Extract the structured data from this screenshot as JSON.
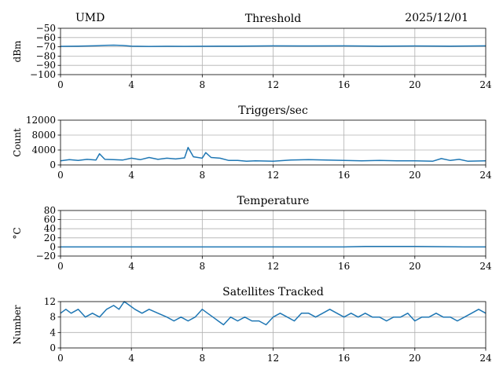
{
  "header": {
    "station": "UMD",
    "date": "2025/12/01"
  },
  "chart_data": [
    {
      "type": "line",
      "title": "Threshold",
      "ylabel": "dBm",
      "xlim": [
        0,
        24
      ],
      "ylim": [
        -100,
        -50
      ],
      "xticks": [
        "0",
        "4",
        "8",
        "12",
        "16",
        "20",
        "24"
      ],
      "yticks": [
        "−50",
        "−60",
        "−70",
        "−80",
        "−90",
        "−100"
      ],
      "grid": true,
      "series": [
        {
          "color": "#1f77b4",
          "x": [
            0,
            1,
            2,
            2.5,
            3,
            3.5,
            4,
            5,
            6,
            7,
            8,
            9,
            10,
            12,
            14,
            16,
            18,
            20,
            22,
            24
          ],
          "y": [
            -69.5,
            -69.3,
            -68.8,
            -68.5,
            -68.2,
            -68.6,
            -69.3,
            -69.6,
            -69.4,
            -69.5,
            -69.4,
            -69.3,
            -69.2,
            -69.0,
            -69.1,
            -69.0,
            -69.2,
            -69.1,
            -69.2,
            -69.0
          ]
        }
      ]
    },
    {
      "type": "line",
      "title": "Triggers/sec",
      "ylabel": "Count",
      "xlim": [
        0,
        24
      ],
      "ylim": [
        0,
        12000
      ],
      "xticks": [
        "0",
        "4",
        "8",
        "12",
        "16",
        "20",
        "24"
      ],
      "yticks": [
        "12000",
        "8000",
        "4000",
        "0"
      ],
      "grid": true,
      "series": [
        {
          "color": "#1f77b4",
          "x": [
            0,
            0.5,
            1,
            1.5,
            2,
            2.2,
            2.5,
            3,
            3.5,
            4,
            4.5,
            5,
            5.5,
            6,
            6.5,
            7,
            7.2,
            7.5,
            8,
            8.2,
            8.5,
            9,
            9.5,
            10,
            10.5,
            11,
            12,
            13,
            14,
            15,
            16,
            17,
            18,
            19,
            20,
            21,
            21.5,
            22,
            22.5,
            23,
            24
          ],
          "y": [
            1100,
            1400,
            1200,
            1500,
            1300,
            3000,
            1500,
            1400,
            1300,
            1800,
            1400,
            2000,
            1500,
            1800,
            1600,
            1900,
            4700,
            2200,
            1800,
            3300,
            2000,
            1800,
            1200,
            1200,
            1000,
            1100,
            1000,
            1300,
            1400,
            1300,
            1200,
            1100,
            1200,
            1100,
            1100,
            1000,
            1700,
            1200,
            1500,
            1000,
            1100
          ]
        }
      ]
    },
    {
      "type": "line",
      "title": "Temperature",
      "ylabel": "°C",
      "xlim": [
        0,
        24
      ],
      "ylim": [
        -20,
        80
      ],
      "xticks": [
        "0",
        "4",
        "8",
        "12",
        "16",
        "20",
        "24"
      ],
      "yticks": [
        "80",
        "60",
        "40",
        "20",
        "0",
        "−20"
      ],
      "grid": true,
      "series": [
        {
          "color": "#1f77b4",
          "x": [
            0,
            4,
            8,
            12,
            16,
            17.2,
            20,
            22.8,
            24
          ],
          "y": [
            0,
            0,
            0,
            0,
            0,
            1,
            1,
            0,
            0
          ]
        }
      ]
    },
    {
      "type": "line",
      "title": "Satellites Tracked",
      "ylabel": "Number",
      "xlim": [
        0,
        24
      ],
      "ylim": [
        0,
        12
      ],
      "xticks": [
        "0",
        "4",
        "8",
        "12",
        "16",
        "20",
        "24"
      ],
      "yticks": [
        "12",
        "8",
        "4",
        "0"
      ],
      "grid": true,
      "series": [
        {
          "color": "#1f77b4",
          "x": [
            0,
            0.3,
            0.6,
            1,
            1.4,
            1.8,
            2.2,
            2.6,
            3,
            3.3,
            3.6,
            3.9,
            4.2,
            4.6,
            5,
            5.5,
            6,
            6.4,
            6.8,
            7.2,
            7.6,
            8,
            8.3,
            8.6,
            8.9,
            9.2,
            9.6,
            10,
            10.4,
            10.8,
            11.2,
            11.6,
            12,
            12.4,
            12.8,
            13.2,
            13.6,
            14,
            14.4,
            14.8,
            15.2,
            15.6,
            16,
            16.4,
            16.8,
            17.2,
            17.6,
            18,
            18.4,
            18.8,
            19.2,
            19.6,
            20,
            20.4,
            20.8,
            21.2,
            21.6,
            22,
            22.4,
            22.8,
            23.2,
            23.6,
            24
          ],
          "y": [
            9,
            10,
            9,
            10,
            8,
            9,
            8,
            10,
            11,
            10,
            12,
            11,
            10,
            9,
            10,
            9,
            8,
            7,
            8,
            7,
            8,
            10,
            9,
            8,
            7,
            6,
            8,
            7,
            8,
            7,
            7,
            6,
            8,
            9,
            8,
            7,
            9,
            9,
            8,
            9,
            10,
            9,
            8,
            9,
            8,
            9,
            8,
            8,
            7,
            8,
            8,
            9,
            7,
            8,
            8,
            9,
            8,
            8,
            7,
            8,
            9,
            10,
            9
          ]
        }
      ]
    }
  ]
}
